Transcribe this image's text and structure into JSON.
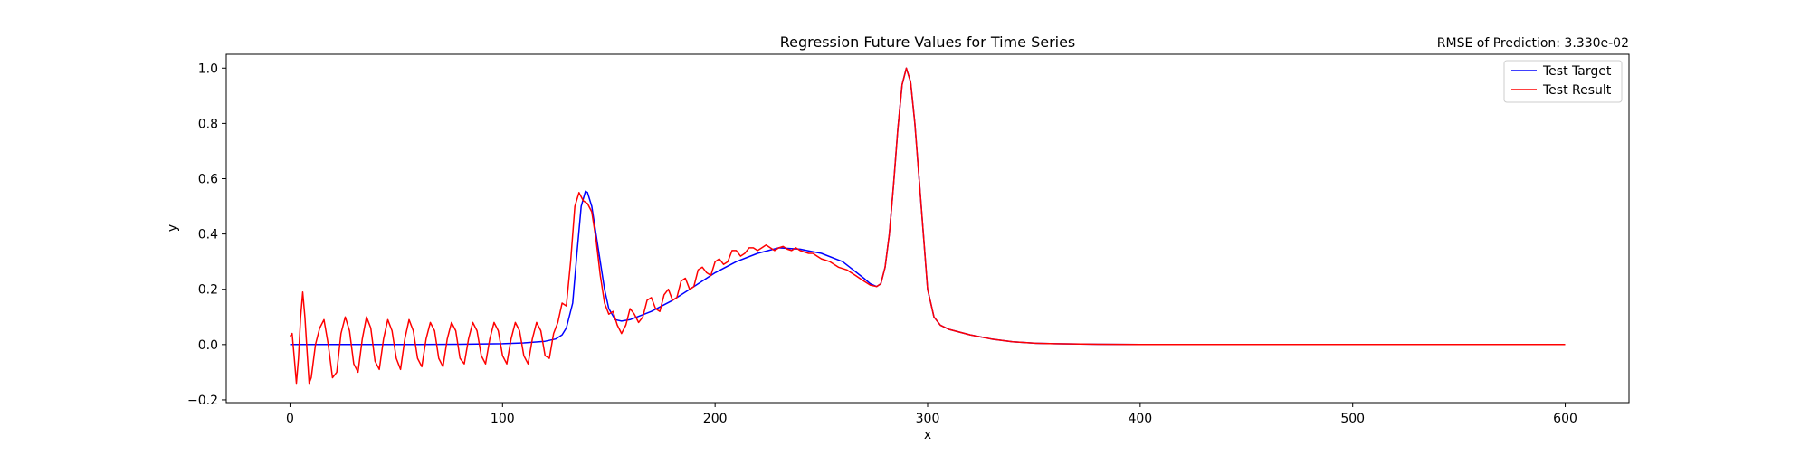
{
  "chart_data": {
    "type": "line",
    "title": "Regression Future Values for Time Series",
    "annotation": "RMSE of Prediction: 3.330e-02",
    "xlabel": "x",
    "ylabel": "y",
    "xlim": [
      -30,
      630
    ],
    "ylim": [
      -0.21,
      1.05
    ],
    "xticks": [
      0,
      100,
      200,
      300,
      400,
      500,
      600
    ],
    "yticks": [
      -0.2,
      0.0,
      0.2,
      0.4,
      0.6,
      0.8,
      1.0
    ],
    "ytick_labels": [
      "−0.2",
      "0.0",
      "0.2",
      "0.4",
      "0.6",
      "0.8",
      "1.0"
    ],
    "grid": false,
    "legend_position": "top-right",
    "series": [
      {
        "name": "Test Target",
        "color": "#0000ff",
        "x": [
          0,
          20,
          40,
          60,
          80,
          100,
          110,
          120,
          125,
          128,
          130,
          133,
          135,
          137,
          139,
          140,
          142,
          144,
          146,
          148,
          150,
          153,
          156,
          160,
          170,
          180,
          190,
          200,
          210,
          220,
          230,
          240,
          250,
          260,
          265,
          270,
          273,
          276,
          278,
          280,
          282,
          284,
          286,
          288,
          290,
          292,
          294,
          296,
          298,
          300,
          303,
          306,
          310,
          320,
          330,
          340,
          350,
          360,
          380,
          400,
          450,
          500,
          550,
          600
        ],
        "y": [
          0,
          0,
          0,
          0,
          0.001,
          0.003,
          0.006,
          0.012,
          0.02,
          0.035,
          0.06,
          0.15,
          0.33,
          0.5,
          0.555,
          0.55,
          0.5,
          0.4,
          0.3,
          0.2,
          0.13,
          0.09,
          0.085,
          0.09,
          0.12,
          0.16,
          0.21,
          0.26,
          0.3,
          0.33,
          0.35,
          0.345,
          0.33,
          0.3,
          0.27,
          0.24,
          0.22,
          0.21,
          0.22,
          0.28,
          0.4,
          0.58,
          0.78,
          0.94,
          1.0,
          0.95,
          0.8,
          0.6,
          0.4,
          0.2,
          0.1,
          0.07,
          0.055,
          0.035,
          0.02,
          0.01,
          0.005,
          0.003,
          0.001,
          0.0,
          0.0,
          0.0,
          0.0,
          0.0
        ]
      },
      {
        "name": "Test Result",
        "color": "#ff0000",
        "x": [
          0,
          1,
          2,
          3,
          4,
          5,
          6,
          7,
          8,
          9,
          10,
          12,
          14,
          16,
          18,
          20,
          22,
          24,
          26,
          28,
          30,
          32,
          34,
          36,
          38,
          40,
          42,
          44,
          46,
          48,
          50,
          52,
          54,
          56,
          58,
          60,
          62,
          64,
          66,
          68,
          70,
          72,
          74,
          76,
          78,
          80,
          82,
          84,
          86,
          88,
          90,
          92,
          94,
          96,
          98,
          100,
          102,
          104,
          106,
          108,
          110,
          112,
          114,
          116,
          118,
          120,
          122,
          124,
          126,
          128,
          130,
          132,
          134,
          136,
          138,
          140,
          142,
          144,
          146,
          148,
          150,
          152,
          154,
          156,
          158,
          160,
          162,
          164,
          166,
          168,
          170,
          172,
          174,
          176,
          178,
          180,
          182,
          184,
          186,
          188,
          190,
          192,
          194,
          196,
          198,
          200,
          202,
          204,
          206,
          208,
          210,
          212,
          214,
          216,
          218,
          220,
          222,
          224,
          226,
          228,
          230,
          232,
          234,
          236,
          238,
          240,
          242,
          244,
          246,
          248,
          250,
          252,
          254,
          256,
          258,
          260,
          262,
          264,
          266,
          268,
          270,
          273,
          276,
          278,
          280,
          282,
          284,
          286,
          288,
          290,
          292,
          294,
          296,
          298,
          300,
          303,
          306,
          310,
          320,
          330,
          340,
          350,
          360,
          380,
          400,
          450,
          500,
          550,
          600
        ],
        "y": [
          0.03,
          0.04,
          -0.05,
          -0.14,
          -0.05,
          0.1,
          0.19,
          0.1,
          -0.02,
          -0.14,
          -0.12,
          0.0,
          0.06,
          0.09,
          0.0,
          -0.12,
          -0.1,
          0.04,
          0.1,
          0.05,
          -0.07,
          -0.1,
          0.02,
          0.1,
          0.06,
          -0.06,
          -0.09,
          0.02,
          0.09,
          0.05,
          -0.05,
          -0.09,
          0.02,
          0.09,
          0.05,
          -0.05,
          -0.08,
          0.02,
          0.08,
          0.05,
          -0.05,
          -0.08,
          0.02,
          0.08,
          0.05,
          -0.05,
          -0.07,
          0.02,
          0.08,
          0.05,
          -0.04,
          -0.07,
          0.02,
          0.08,
          0.05,
          -0.04,
          -0.07,
          0.02,
          0.08,
          0.05,
          -0.04,
          -0.07,
          0.02,
          0.08,
          0.05,
          -0.04,
          -0.05,
          0.04,
          0.08,
          0.15,
          0.14,
          0.3,
          0.5,
          0.55,
          0.52,
          0.51,
          0.48,
          0.38,
          0.25,
          0.15,
          0.11,
          0.12,
          0.07,
          0.04,
          0.07,
          0.13,
          0.11,
          0.08,
          0.1,
          0.16,
          0.17,
          0.13,
          0.12,
          0.18,
          0.2,
          0.16,
          0.17,
          0.23,
          0.24,
          0.2,
          0.21,
          0.27,
          0.28,
          0.26,
          0.25,
          0.3,
          0.31,
          0.29,
          0.3,
          0.34,
          0.34,
          0.32,
          0.33,
          0.35,
          0.35,
          0.34,
          0.35,
          0.36,
          0.35,
          0.34,
          0.35,
          0.355,
          0.345,
          0.34,
          0.35,
          0.34,
          0.335,
          0.33,
          0.33,
          0.32,
          0.31,
          0.305,
          0.3,
          0.29,
          0.28,
          0.275,
          0.27,
          0.26,
          0.25,
          0.24,
          0.23,
          0.215,
          0.21,
          0.22,
          0.28,
          0.4,
          0.58,
          0.78,
          0.94,
          1.0,
          0.95,
          0.8,
          0.6,
          0.4,
          0.2,
          0.1,
          0.07,
          0.055,
          0.035,
          0.02,
          0.01,
          0.005,
          0.003,
          0.001,
          0.0,
          0.0,
          0.0,
          0.0,
          0.0
        ]
      }
    ]
  }
}
